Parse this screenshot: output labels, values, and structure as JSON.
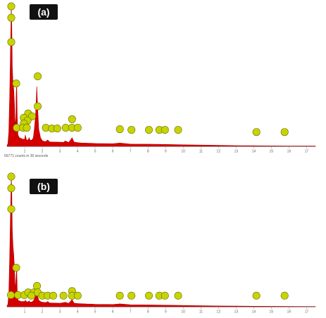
{
  "chart_data": [
    {
      "type": "spectrum",
      "panel_label": "(a)",
      "x_ticks": [
        "1",
        "2",
        "3",
        "4",
        "5",
        "6",
        "7",
        "8",
        "9",
        "10",
        "11",
        "12",
        "13",
        "14",
        "15",
        "16",
        "17"
      ],
      "xlim": [
        0,
        17.5
      ],
      "spectrum": [
        [
          0.0,
          0.5
        ],
        [
          0.05,
          2
        ],
        [
          0.1,
          10
        ],
        [
          0.15,
          35
        ],
        [
          0.2,
          70
        ],
        [
          0.24,
          98
        ],
        [
          0.27,
          85
        ],
        [
          0.3,
          55
        ],
        [
          0.34,
          44
        ],
        [
          0.38,
          40
        ],
        [
          0.42,
          30
        ],
        [
          0.46,
          14
        ],
        [
          0.5,
          20
        ],
        [
          0.52,
          38
        ],
        [
          0.55,
          43
        ],
        [
          0.58,
          20
        ],
        [
          0.62,
          8
        ],
        [
          0.7,
          6
        ],
        [
          0.8,
          5.5
        ],
        [
          0.9,
          5
        ],
        [
          1.0,
          5
        ],
        [
          1.04,
          8
        ],
        [
          1.1,
          4.5
        ],
        [
          1.2,
          4.5
        ],
        [
          1.25,
          6
        ],
        [
          1.3,
          4.5
        ],
        [
          1.4,
          4.2
        ],
        [
          1.49,
          6
        ],
        [
          1.55,
          12
        ],
        [
          1.62,
          22
        ],
        [
          1.69,
          42
        ],
        [
          1.74,
          26
        ],
        [
          1.8,
          12
        ],
        [
          1.9,
          6
        ],
        [
          2.0,
          4
        ],
        [
          2.1,
          3.5
        ],
        [
          2.2,
          3.4
        ],
        [
          2.31,
          4.5
        ],
        [
          2.4,
          3.2
        ],
        [
          2.6,
          3
        ],
        [
          2.8,
          3
        ],
        [
          3.0,
          2.9
        ],
        [
          3.2,
          2.8
        ],
        [
          3.31,
          3.8
        ],
        [
          3.5,
          2.7
        ],
        [
          3.69,
          6
        ],
        [
          3.8,
          3
        ],
        [
          4.0,
          2.6
        ],
        [
          4.2,
          2.4
        ],
        [
          4.6,
          2.2
        ],
        [
          5.0,
          2
        ],
        [
          6.0,
          1.8
        ],
        [
          6.4,
          2.3
        ],
        [
          7.0,
          1.6
        ],
        [
          8.0,
          1.5
        ],
        [
          9.0,
          1.3
        ],
        [
          10.0,
          1.1
        ],
        [
          11.0,
          0.9
        ],
        [
          12.0,
          0.7
        ],
        [
          13.0,
          0.5
        ],
        [
          14.0,
          0.4
        ],
        [
          15.0,
          0.3
        ],
        [
          16.0,
          0.25
        ],
        [
          17.0,
          0.2
        ],
        [
          17.5,
          0.2
        ]
      ],
      "peak_labels": [
        {
          "x": 0.24,
          "y": 98,
          "text": ""
        },
        {
          "x": 0.24,
          "y": 90,
          "text": ""
        },
        {
          "x": 0.24,
          "y": 73,
          "text": ""
        },
        {
          "x": 0.52,
          "y": 44,
          "text": ""
        },
        {
          "x": 1.74,
          "y": 49,
          "text": ""
        },
        {
          "x": 1.74,
          "y": 28,
          "text": ""
        },
        {
          "x": 1.2,
          "y": 23,
          "text": ""
        },
        {
          "x": 1.42,
          "y": 21,
          "text": ""
        },
        {
          "x": 0.95,
          "y": 20,
          "text": ""
        },
        {
          "x": 1.16,
          "y": 18,
          "text": ""
        },
        {
          "x": 0.95,
          "y": 16,
          "text": ""
        },
        {
          "x": 0.55,
          "y": 13,
          "text": ""
        },
        {
          "x": 0.9,
          "y": 13,
          "text": ""
        },
        {
          "x": 1.12,
          "y": 13,
          "text": ""
        },
        {
          "x": 2.2,
          "y": 13,
          "text": ""
        },
        {
          "x": 2.55,
          "y": 12.5,
          "text": ""
        },
        {
          "x": 2.85,
          "y": 12.5,
          "text": ""
        },
        {
          "x": 3.33,
          "y": 13,
          "text": ""
        },
        {
          "x": 3.69,
          "y": 19,
          "text": ""
        },
        {
          "x": 3.69,
          "y": 13,
          "text": ""
        },
        {
          "x": 4.01,
          "y": 13,
          "text": ""
        },
        {
          "x": 6.4,
          "y": 12,
          "text": ""
        },
        {
          "x": 7.06,
          "y": 11.5,
          "text": ""
        },
        {
          "x": 8.05,
          "y": 11.5,
          "text": ""
        },
        {
          "x": 8.64,
          "y": 11.5,
          "text": ""
        },
        {
          "x": 8.96,
          "y": 11.5,
          "text": ""
        },
        {
          "x": 9.71,
          "y": 11.5,
          "text": ""
        },
        {
          "x": 14.15,
          "y": 10,
          "text": ""
        },
        {
          "x": 15.75,
          "y": 10,
          "text": ""
        }
      ],
      "axis_caption": "56771 counts in 30 seconds"
    },
    {
      "type": "spectrum",
      "panel_label": "(b)",
      "x_ticks": [
        "1",
        "2",
        "3",
        "4",
        "5",
        "6",
        "7",
        "8",
        "9",
        "10",
        "11",
        "12",
        "13",
        "14",
        "15",
        "16",
        "17"
      ],
      "xlim": [
        0,
        17.5
      ],
      "spectrum": [
        [
          0.0,
          0.5
        ],
        [
          0.05,
          2
        ],
        [
          0.1,
          10
        ],
        [
          0.15,
          38
        ],
        [
          0.2,
          75
        ],
        [
          0.24,
          100
        ],
        [
          0.27,
          88
        ],
        [
          0.3,
          58
        ],
        [
          0.34,
          46
        ],
        [
          0.38,
          40
        ],
        [
          0.42,
          30
        ],
        [
          0.46,
          13
        ],
        [
          0.5,
          20
        ],
        [
          0.52,
          26
        ],
        [
          0.55,
          28
        ],
        [
          0.58,
          12
        ],
        [
          0.62,
          5
        ],
        [
          0.7,
          4.5
        ],
        [
          0.8,
          4
        ],
        [
          0.9,
          4
        ],
        [
          1.0,
          4
        ],
        [
          1.04,
          5
        ],
        [
          1.1,
          3.8
        ],
        [
          1.2,
          3.8
        ],
        [
          1.25,
          4.5
        ],
        [
          1.3,
          3.7
        ],
        [
          1.4,
          3.6
        ],
        [
          1.49,
          4.5
        ],
        [
          1.55,
          6
        ],
        [
          1.62,
          8
        ],
        [
          1.69,
          11
        ],
        [
          1.74,
          8
        ],
        [
          1.8,
          5
        ],
        [
          1.9,
          4
        ],
        [
          2.0,
          3.5
        ],
        [
          2.2,
          3.2
        ],
        [
          2.31,
          4
        ],
        [
          2.4,
          3
        ],
        [
          2.6,
          2.8
        ],
        [
          2.8,
          2.8
        ],
        [
          3.0,
          2.7
        ],
        [
          3.31,
          3.4
        ],
        [
          3.5,
          2.6
        ],
        [
          3.69,
          5.5
        ],
        [
          3.8,
          2.8
        ],
        [
          4.0,
          2.5
        ],
        [
          4.6,
          2.1
        ],
        [
          5.0,
          1.9
        ],
        [
          6.0,
          1.7
        ],
        [
          6.4,
          2.2
        ],
        [
          7.0,
          1.5
        ],
        [
          8.0,
          1.4
        ],
        [
          9.0,
          1.2
        ],
        [
          10.0,
          1.0
        ],
        [
          11.0,
          0.8
        ],
        [
          12.0,
          0.6
        ],
        [
          13.0,
          0.5
        ],
        [
          14.0,
          0.4
        ],
        [
          15.0,
          0.3
        ],
        [
          16.0,
          0.25
        ],
        [
          17.0,
          0.2
        ],
        [
          17.5,
          0.2
        ]
      ],
      "peak_labels": [
        {
          "x": 0.24,
          "y": 100,
          "text": ""
        },
        {
          "x": 0.24,
          "y": 91,
          "text": ""
        },
        {
          "x": 0.24,
          "y": 75,
          "text": ""
        },
        {
          "x": 0.52,
          "y": 30,
          "text": ""
        },
        {
          "x": 0.22,
          "y": 9,
          "text": ""
        },
        {
          "x": 0.62,
          "y": 9,
          "text": ""
        },
        {
          "x": 0.98,
          "y": 9,
          "text": ""
        },
        {
          "x": 1.2,
          "y": 11,
          "text": ""
        },
        {
          "x": 1.52,
          "y": 11,
          "text": ""
        },
        {
          "x": 1.7,
          "y": 16,
          "text": ""
        },
        {
          "x": 1.74,
          "y": 11,
          "text": ""
        },
        {
          "x": 1.38,
          "y": 8.5,
          "text": ""
        },
        {
          "x": 2.0,
          "y": 8.5,
          "text": ""
        },
        {
          "x": 2.3,
          "y": 8.5,
          "text": ""
        },
        {
          "x": 2.62,
          "y": 8.5,
          "text": ""
        },
        {
          "x": 3.2,
          "y": 8.5,
          "text": ""
        },
        {
          "x": 3.69,
          "y": 12,
          "text": ""
        },
        {
          "x": 3.69,
          "y": 8.5,
          "text": ""
        },
        {
          "x": 4.01,
          "y": 8.5,
          "text": ""
        },
        {
          "x": 6.4,
          "y": 8.5,
          "text": ""
        },
        {
          "x": 7.06,
          "y": 8.5,
          "text": ""
        },
        {
          "x": 8.05,
          "y": 8.5,
          "text": ""
        },
        {
          "x": 8.64,
          "y": 8.5,
          "text": ""
        },
        {
          "x": 8.96,
          "y": 8.5,
          "text": ""
        },
        {
          "x": 9.71,
          "y": 8.5,
          "text": ""
        },
        {
          "x": 14.15,
          "y": 8.5,
          "text": ""
        },
        {
          "x": 15.75,
          "y": 8.5,
          "text": ""
        }
      ]
    }
  ],
  "colors": {
    "spectrum_fill": "#d40000",
    "spectrum_stroke": "#b00000",
    "marker_fill": "#c8d400",
    "marker_stroke": "#6b7000",
    "axis": "#999999",
    "tick_text": "#666666"
  }
}
